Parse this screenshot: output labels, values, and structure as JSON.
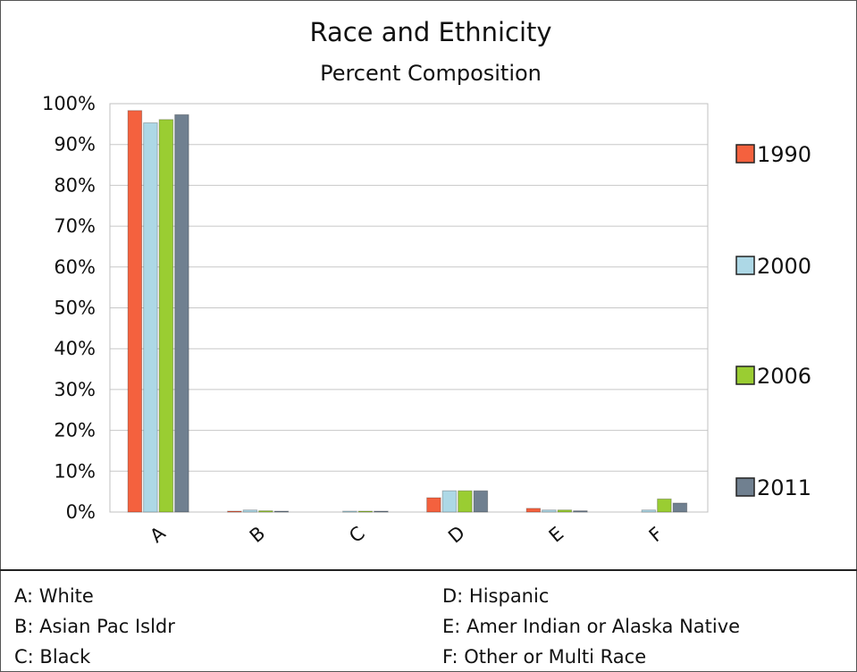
{
  "chart_data": {
    "type": "bar",
    "title": "Race and Ethnicity",
    "subtitle": "Percent Composition",
    "xlabel": "",
    "ylabel": "",
    "ylim": [
      0,
      100
    ],
    "yticks": [
      "0%",
      "10%",
      "20%",
      "30%",
      "40%",
      "50%",
      "60%",
      "70%",
      "80%",
      "90%",
      "100%"
    ],
    "categories": [
      "A",
      "B",
      "C",
      "D",
      "E",
      "F"
    ],
    "series": [
      {
        "name": "1990",
        "color": "#f4613e",
        "values": [
          98.3,
          0.2,
          0.0,
          3.5,
          0.9,
          0.0
        ]
      },
      {
        "name": "2000",
        "color": "#add8e6",
        "values": [
          95.3,
          0.5,
          0.1,
          5.2,
          0.5,
          0.5
        ]
      },
      {
        "name": "2006",
        "color": "#9acd32",
        "values": [
          96.1,
          0.3,
          0.1,
          5.2,
          0.5,
          3.2
        ]
      },
      {
        "name": "2011",
        "color": "#708090",
        "values": [
          97.3,
          0.2,
          0.1,
          5.2,
          0.3,
          2.2
        ]
      }
    ],
    "grid": true,
    "legend": "right"
  },
  "key": [
    "A: White",
    "B: Asian Pac Isldr",
    "C: Black",
    "D: Hispanic",
    "E: Amer Indian or Alaska Native",
    "F: Other or Multi Race"
  ]
}
